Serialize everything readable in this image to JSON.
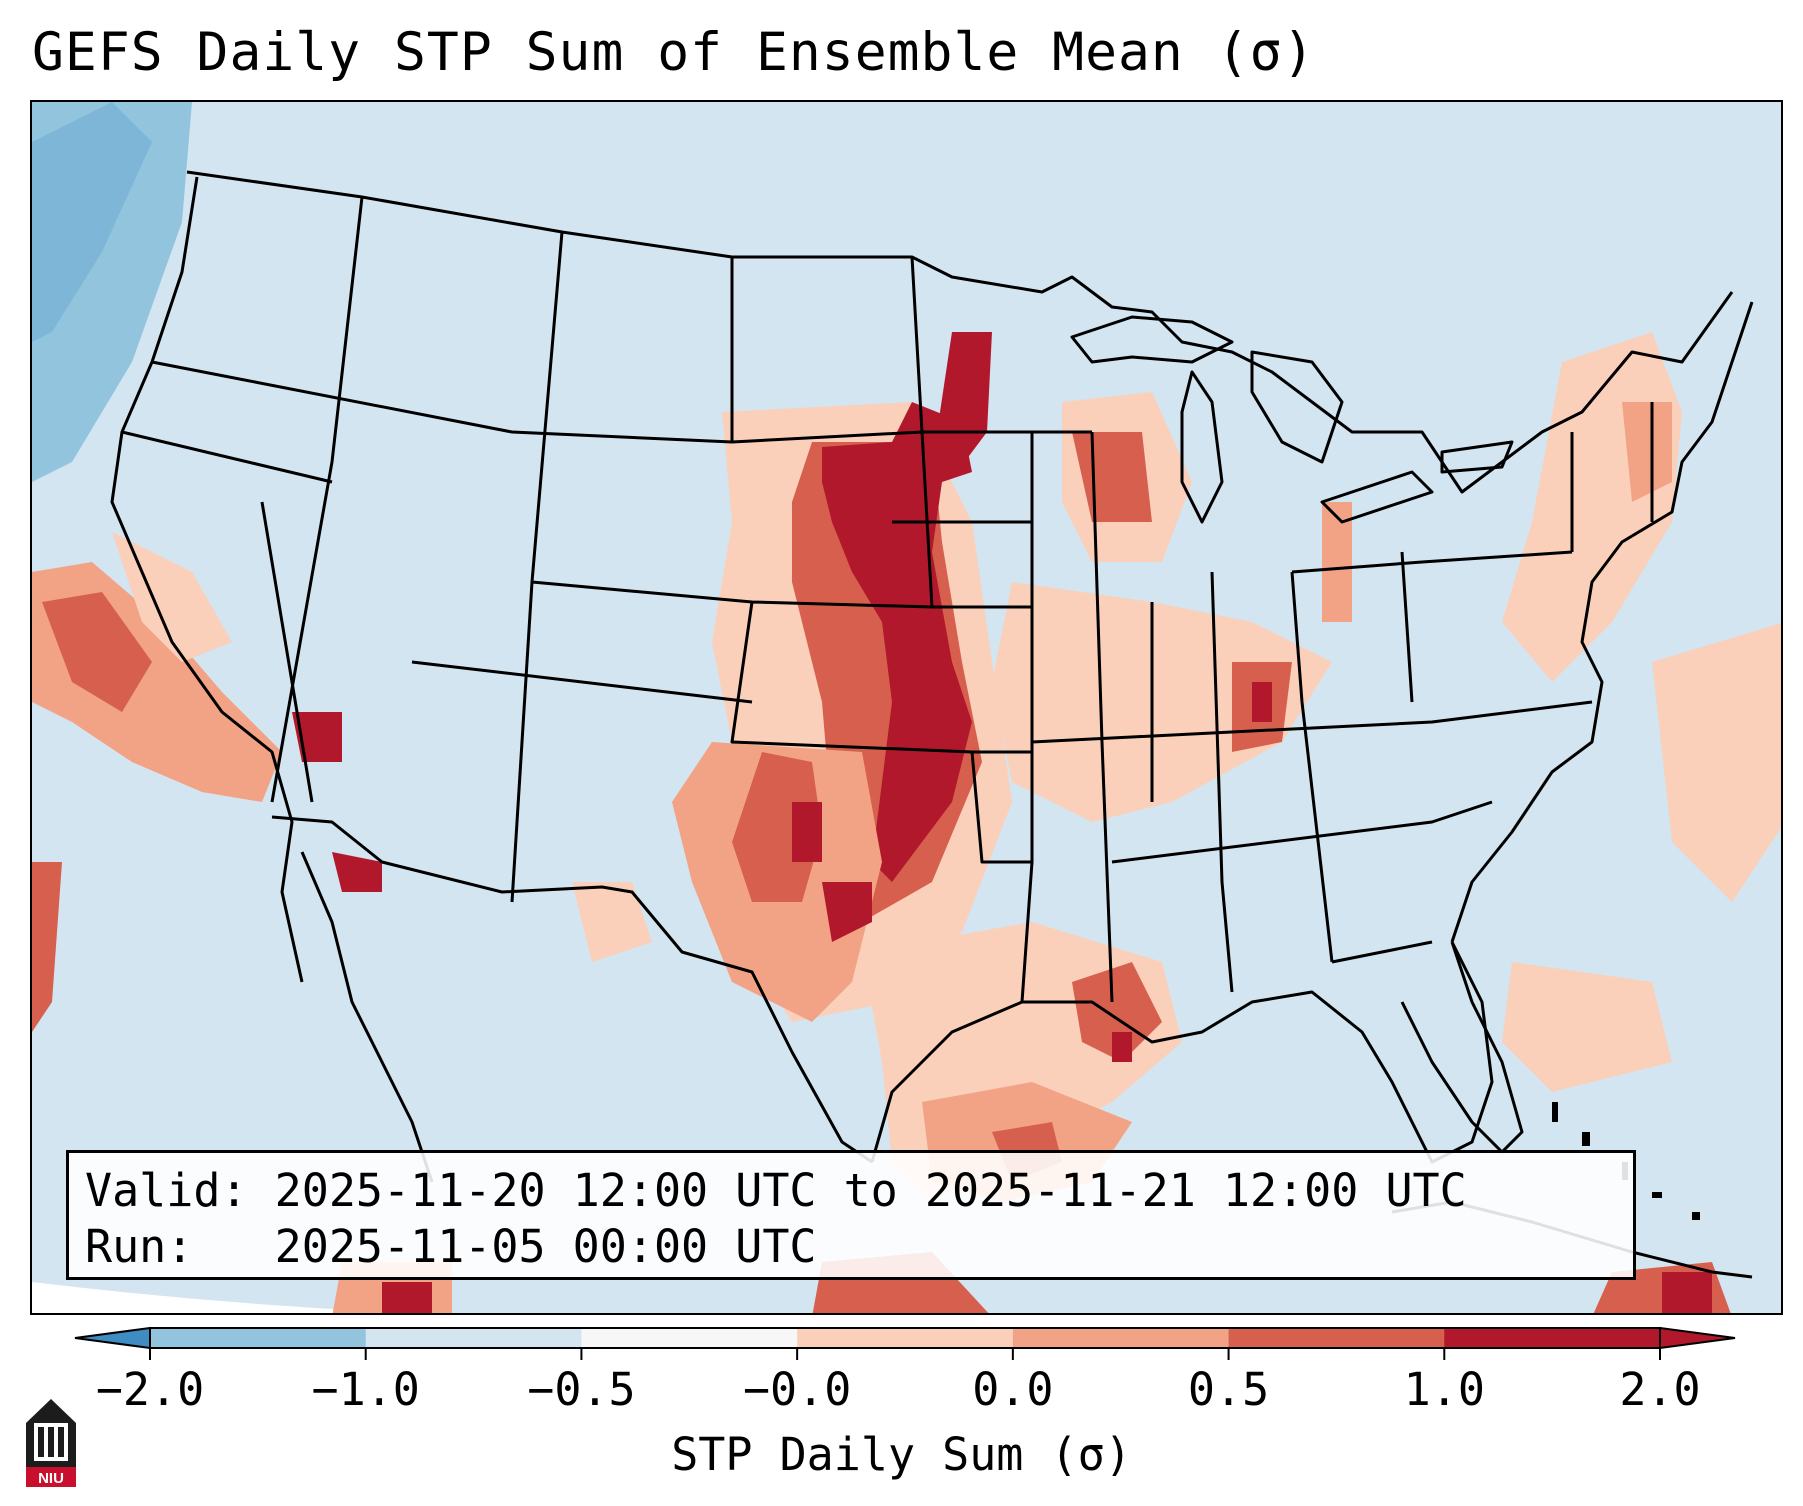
{
  "title": "GEFS Daily STP Sum of Ensemble Mean (σ)",
  "info": {
    "valid_label": "Valid:",
    "valid_value": "2025-11-20 12:00 UTC to 2025-11-21 12:00 UTC",
    "run_label": "Run:",
    "run_value": "2025-11-05 00:00 UTC"
  },
  "colorbar": {
    "label": "STP Daily Sum (σ)",
    "ticks": [
      "−2.0",
      "−1.0",
      "−0.5",
      "−0.0",
      "0.0",
      "0.5",
      "1.0",
      "2.0"
    ],
    "colors": [
      "#3f8cc2",
      "#93c4de",
      "#d2e5f0",
      "#f7f7f7",
      "#fbd0bb",
      "#f2a386",
      "#d6604d",
      "#b2182b"
    ],
    "under_color": "#3f8cc2",
    "over_color": "#b2182b"
  },
  "map": {
    "background_color": "#d2e5f0",
    "region": "CONUS and adjacent areas",
    "hotspots": [
      {
        "area": "Nebraska / Kansas / Iowa border",
        "level": 2.0
      },
      {
        "area": "eastern Oklahoma / north Texas",
        "level": 2.0
      },
      {
        "area": "Louisiana / Gulf coast",
        "level": 1.0
      },
      {
        "area": "northwest Gulf of Mexico",
        "level": 0.5
      },
      {
        "area": "central California coast (offshore)",
        "level": 1.0
      },
      {
        "area": "northern Wisconsin",
        "level": 1.0
      }
    ]
  },
  "logo": {
    "text": "NIU",
    "accent_color": "#c8102e"
  }
}
